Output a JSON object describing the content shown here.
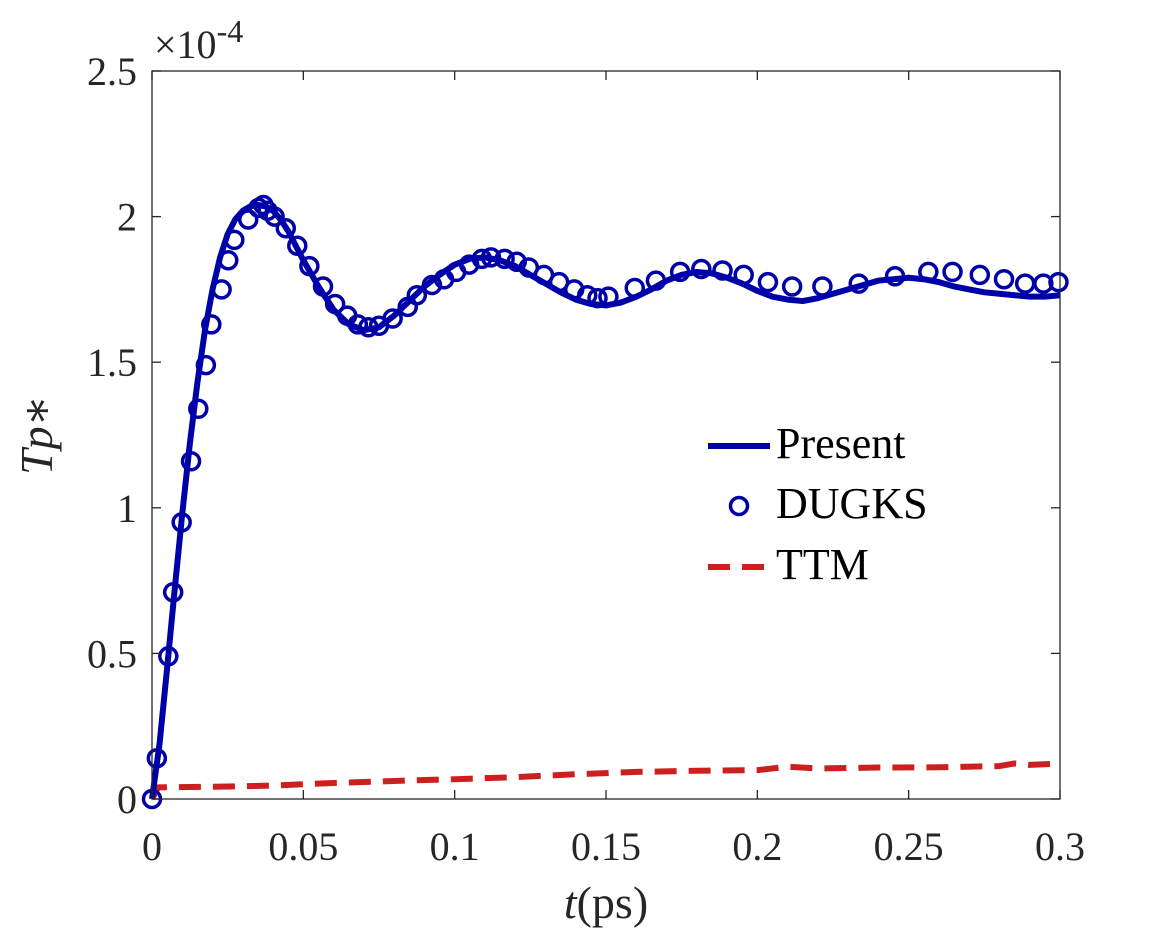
{
  "chart_data": {
    "type": "line",
    "title": "",
    "xlabel": {
      "var": "t",
      "unit": "(ps)"
    },
    "ylabel": {
      "var": "Tp",
      "suffix": "∗"
    },
    "xlim": [
      0,
      0.3
    ],
    "ylim": [
      0,
      2.5
    ],
    "y_exponent": {
      "base": "×10",
      "power": "-4"
    },
    "xticks": [
      0,
      0.05,
      0.1,
      0.15,
      0.2,
      0.25,
      0.3
    ],
    "xtick_labels": [
      "0",
      "0.05",
      "0.1",
      "0.15",
      "0.2",
      "0.25",
      "0.3"
    ],
    "yticks": [
      0,
      0.5,
      1,
      1.5,
      2,
      2.5
    ],
    "ytick_labels": [
      "0",
      "0.5",
      "1",
      "1.5",
      "2",
      "2.5"
    ],
    "grid": false,
    "legend_position": "center-right",
    "series": [
      {
        "name": "Present",
        "style": "solid",
        "color": "#0000a8",
        "x": [
          0,
          0.0025,
          0.005,
          0.0075,
          0.01,
          0.0125,
          0.015,
          0.0175,
          0.02,
          0.0225,
          0.025,
          0.0275,
          0.03,
          0.0325,
          0.035,
          0.0375,
          0.04,
          0.0425,
          0.045,
          0.0475,
          0.05,
          0.055,
          0.06,
          0.065,
          0.07,
          0.075,
          0.08,
          0.085,
          0.09,
          0.095,
          0.1,
          0.105,
          0.11,
          0.115,
          0.12,
          0.125,
          0.13,
          0.135,
          0.14,
          0.145,
          0.15,
          0.155,
          0.16,
          0.165,
          0.17,
          0.175,
          0.18,
          0.185,
          0.19,
          0.195,
          0.2,
          0.205,
          0.21,
          0.215,
          0.22,
          0.225,
          0.23,
          0.235,
          0.24,
          0.245,
          0.25,
          0.255,
          0.26,
          0.265,
          0.27,
          0.275,
          0.28,
          0.285,
          0.29,
          0.295,
          0.3
        ],
        "values": [
          0.0,
          0.19,
          0.45,
          0.72,
          0.98,
          1.22,
          1.43,
          1.61,
          1.75,
          1.86,
          1.94,
          1.99,
          2.02,
          2.035,
          2.04,
          2.035,
          2.02,
          1.99,
          1.95,
          1.9,
          1.85,
          1.76,
          1.68,
          1.63,
          1.61,
          1.62,
          1.66,
          1.71,
          1.76,
          1.8,
          1.835,
          1.855,
          1.86,
          1.85,
          1.83,
          1.8,
          1.77,
          1.74,
          1.715,
          1.7,
          1.695,
          1.705,
          1.725,
          1.75,
          1.78,
          1.8,
          1.81,
          1.805,
          1.79,
          1.77,
          1.745,
          1.725,
          1.715,
          1.71,
          1.72,
          1.735,
          1.75,
          1.765,
          1.78,
          1.785,
          1.79,
          1.785,
          1.775,
          1.76,
          1.75,
          1.74,
          1.735,
          1.73,
          1.725,
          1.725,
          1.73
        ]
      },
      {
        "name": "DUGKS",
        "style": "markers",
        "marker": "circle",
        "color": "#0000a8",
        "x": [
          0.0,
          0.0016,
          0.0054,
          0.007,
          0.0098,
          0.0129,
          0.0153,
          0.0178,
          0.0196,
          0.023,
          0.0252,
          0.0272,
          0.0318,
          0.0352,
          0.0368,
          0.0382,
          0.0405,
          0.0442,
          0.048,
          0.052,
          0.0565,
          0.0605,
          0.0645,
          0.068,
          0.0715,
          0.075,
          0.0795,
          0.0845,
          0.0875,
          0.0925,
          0.0965,
          0.1005,
          0.1048,
          0.109,
          0.112,
          0.1165,
          0.1205,
          0.1245,
          0.1295,
          0.1345,
          0.1395,
          0.1438,
          0.1472,
          0.1508,
          0.1595,
          0.1665,
          0.1745,
          0.1815,
          0.1885,
          0.1955,
          0.2035,
          0.2115,
          0.2215,
          0.2335,
          0.2455,
          0.2565,
          0.2645,
          0.2735,
          0.2815,
          0.2885,
          0.2945,
          0.2995
        ],
        "values": [
          0.0,
          0.14,
          0.49,
          0.71,
          0.95,
          1.16,
          1.34,
          1.49,
          1.63,
          1.75,
          1.85,
          1.92,
          1.99,
          2.03,
          2.04,
          2.02,
          2.0,
          1.96,
          1.9,
          1.83,
          1.76,
          1.7,
          1.66,
          1.63,
          1.62,
          1.625,
          1.65,
          1.69,
          1.73,
          1.765,
          1.785,
          1.81,
          1.835,
          1.855,
          1.86,
          1.855,
          1.845,
          1.825,
          1.8,
          1.775,
          1.75,
          1.73,
          1.72,
          1.725,
          1.755,
          1.78,
          1.81,
          1.82,
          1.815,
          1.8,
          1.775,
          1.76,
          1.76,
          1.77,
          1.795,
          1.81,
          1.81,
          1.8,
          1.785,
          1.77,
          1.77,
          1.775
        ]
      },
      {
        "name": "TTM",
        "style": "dashed",
        "color": "#cc1f1f",
        "x": [
          0.0,
          0.002,
          0.02,
          0.04,
          0.06,
          0.08,
          0.1,
          0.12,
          0.14,
          0.16,
          0.18,
          0.2,
          0.21,
          0.22,
          0.24,
          0.26,
          0.28,
          0.285,
          0.29,
          0.3
        ],
        "values": [
          0.0,
          0.04,
          0.042,
          0.046,
          0.055,
          0.062,
          0.068,
          0.075,
          0.085,
          0.093,
          0.097,
          0.099,
          0.111,
          0.105,
          0.108,
          0.109,
          0.113,
          0.122,
          0.117,
          0.122
        ]
      }
    ]
  }
}
